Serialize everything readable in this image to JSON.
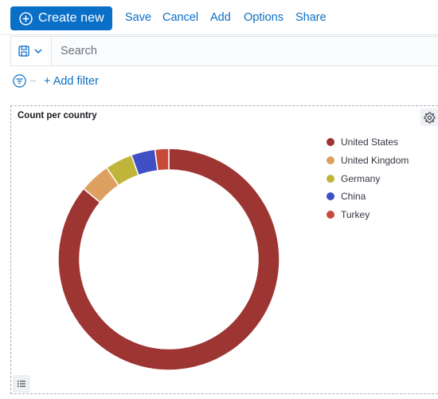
{
  "toolbar": {
    "create_label": "Create new",
    "links": [
      {
        "name": "save-link",
        "label": "Save"
      },
      {
        "name": "cancel-link",
        "label": "Cancel"
      },
      {
        "name": "add-link",
        "label": "Add"
      },
      {
        "name": "options-link",
        "label": "Options"
      },
      {
        "name": "share-link",
        "label": "Share"
      }
    ]
  },
  "search": {
    "placeholder": "Search",
    "value": ""
  },
  "filters": {
    "add_label": "+ Add filter"
  },
  "panel": {
    "title": "Count per country"
  },
  "colors": {
    "accent": "#0a6fc7"
  },
  "icons": {
    "create": "plus-circle-icon",
    "saved_query": "save-icon",
    "saved_query_caret": "chevron-down-icon",
    "filter": "filter-icon",
    "panel_options": "gear-icon",
    "legend_toggle": "list-icon"
  },
  "chart_data": {
    "type": "pie",
    "donut": true,
    "title": "Count per country",
    "categories": [
      "United States",
      "United Kingdom",
      "Germany",
      "China",
      "Turkey"
    ],
    "values": [
      86,
      4.5,
      4,
      3.5,
      2
    ],
    "colors": [
      "#9d3533",
      "#dda060",
      "#c0b43a",
      "#3f4fc4",
      "#c7493a"
    ],
    "legend": "top-right"
  }
}
